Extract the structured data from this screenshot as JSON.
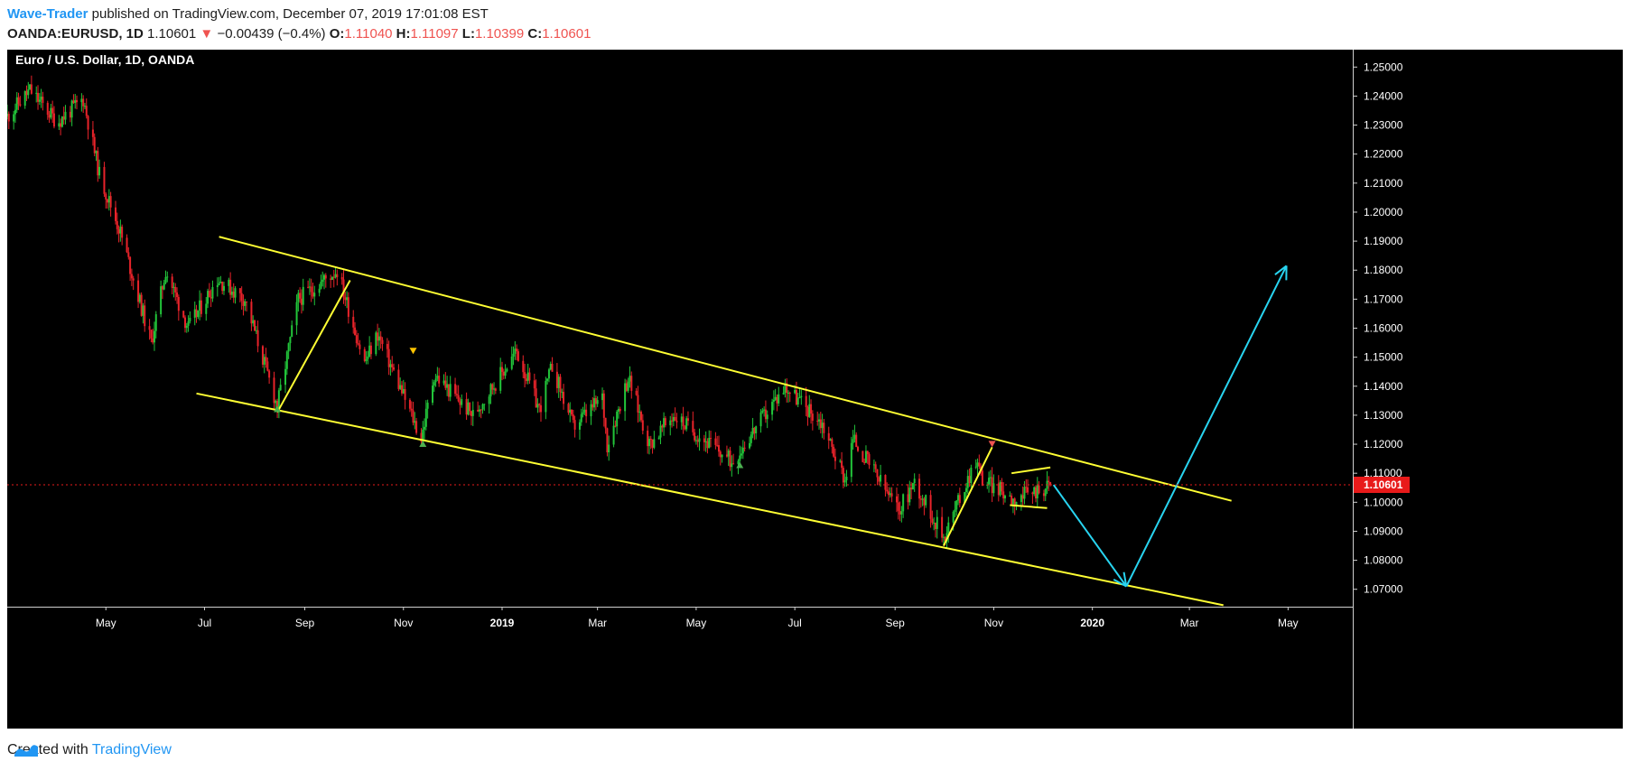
{
  "header": {
    "author": "Wave-Trader",
    "published": " published on TradingView.com, December 07, 2019 17:01:08 EST",
    "symbol": "OANDA:EURUSD, 1D",
    "last": "1.10601",
    "change_arrow": "▼",
    "change": "−0.00439 (−0.4%)",
    "o_label": "O:",
    "o": "1.11040",
    "h_label": "H:",
    "h": "1.11097",
    "l_label": "L:",
    "l": "1.10399",
    "c_label": "C:",
    "c": "1.10601"
  },
  "footer": {
    "created": "Created with",
    "brand": "TradingView",
    "logo_icon": "tradingview-logo-icon"
  },
  "colors": {
    "up": "#22c53a",
    "down": "#e8232a",
    "trendline": "#ffff33",
    "projection": "#28d4f0",
    "price_tag": "#e81a1a",
    "author": "#2196f3"
  },
  "chart_data": {
    "type": "candlestick",
    "title": "Euro / U.S. Dollar, 1D, OANDA",
    "x_ticks": [
      "May",
      "Jul",
      "Sep",
      "Nov",
      "2019",
      "Mar",
      "May",
      "Jul",
      "Sep",
      "Nov",
      "2020",
      "Mar",
      "May"
    ],
    "y_ticks": [
      "1.25000",
      "1.24000",
      "1.23000",
      "1.22000",
      "1.21000",
      "1.20000",
      "1.19000",
      "1.18000",
      "1.17000",
      "1.16000",
      "1.15000",
      "1.14000",
      "1.13000",
      "1.12000",
      "1.11000",
      "1.10000",
      "1.09000",
      "1.08000",
      "1.07000"
    ],
    "ylim": [
      1.064,
      1.256
    ],
    "x_range": [
      "2018-03-01",
      "2020-06-10"
    ],
    "last_price": "1.10601",
    "price_path": [
      [
        "2018-03-01",
        1.233
      ],
      [
        "2018-03-15",
        1.242
      ],
      [
        "2018-04-01",
        1.231
      ],
      [
        "2018-04-17",
        1.239
      ],
      [
        "2018-04-27",
        1.213
      ],
      [
        "2018-05-10",
        1.193
      ],
      [
        "2018-05-29",
        1.155
      ],
      [
        "2018-06-07",
        1.18
      ],
      [
        "2018-06-21",
        1.16
      ],
      [
        "2018-07-09",
        1.177
      ],
      [
        "2018-07-26",
        1.17
      ],
      [
        "2018-08-15",
        1.133
      ],
      [
        "2018-08-28",
        1.17
      ],
      [
        "2018-09-21",
        1.18
      ],
      [
        "2018-10-08",
        1.148
      ],
      [
        "2018-10-16",
        1.158
      ],
      [
        "2018-11-12",
        1.122
      ],
      [
        "2018-11-20",
        1.144
      ],
      [
        "2018-12-14",
        1.13
      ],
      [
        "2019-01-10",
        1.152
      ],
      [
        "2019-01-24",
        1.132
      ],
      [
        "2019-02-01",
        1.147
      ],
      [
        "2019-02-14",
        1.126
      ],
      [
        "2019-03-04",
        1.136
      ],
      [
        "2019-03-07",
        1.12
      ],
      [
        "2019-03-20",
        1.143
      ],
      [
        "2019-04-02",
        1.12
      ],
      [
        "2019-04-17",
        1.13
      ],
      [
        "2019-05-23",
        1.114
      ],
      [
        "2019-06-25",
        1.14
      ],
      [
        "2019-07-18",
        1.127
      ],
      [
        "2019-08-01",
        1.108
      ],
      [
        "2019-08-06",
        1.122
      ],
      [
        "2019-09-03",
        1.097
      ],
      [
        "2019-09-13",
        1.107
      ],
      [
        "2019-10-01",
        1.088
      ],
      [
        "2019-10-21",
        1.115
      ],
      [
        "2019-10-25",
        1.108
      ],
      [
        "2019-11-14",
        1.101
      ],
      [
        "2019-12-06",
        1.106
      ]
    ],
    "trendlines": [
      {
        "name": "channel-upper",
        "from": [
          "2018-07-10",
          1.1915
        ],
        "to": [
          "2020-03-27",
          1.1005
        ],
        "color": "yellow"
      },
      {
        "name": "channel-lower",
        "from": [
          "2018-06-26",
          1.1375
        ],
        "to": [
          "2020-03-22",
          1.0645
        ],
        "color": "yellow"
      },
      {
        "name": "wave-2018",
        "from": [
          "2018-08-15",
          1.131
        ],
        "to": [
          "2018-09-29",
          1.1765
        ],
        "color": "yellow"
      },
      {
        "name": "wave-2019",
        "from": [
          "2019-10-01",
          1.085
        ],
        "to": [
          "2019-10-31",
          1.119
        ],
        "color": "yellow"
      },
      {
        "name": "flag-top",
        "from": [
          "2019-11-12",
          1.11
        ],
        "to": [
          "2019-12-06",
          1.112
        ],
        "color": "yellow"
      },
      {
        "name": "flag-bottom",
        "from": [
          "2019-11-11",
          1.099
        ],
        "to": [
          "2019-12-04",
          1.098
        ],
        "color": "yellow"
      }
    ],
    "projection": [
      [
        "2019-12-08",
        1.106
      ],
      [
        "2020-01-22",
        1.071
      ],
      [
        "2020-04-30",
        1.1815
      ]
    ],
    "markers": [
      {
        "date": "2018-11-07",
        "price": 1.1523,
        "shape": "triangle-down",
        "color": "#ffc400"
      },
      {
        "date": "2018-11-13",
        "price": 1.12,
        "shape": "triangle-up",
        "color": "#4caf50"
      },
      {
        "date": "2018-08-15",
        "price": 1.132,
        "shape": "triangle-up",
        "color": "#4caf50"
      },
      {
        "date": "2019-05-28",
        "price": 1.1127,
        "shape": "triangle-up",
        "color": "#4caf50"
      },
      {
        "date": "2019-10-31",
        "price": 1.1202,
        "shape": "triangle-down",
        "color": "#ef5350"
      }
    ]
  }
}
